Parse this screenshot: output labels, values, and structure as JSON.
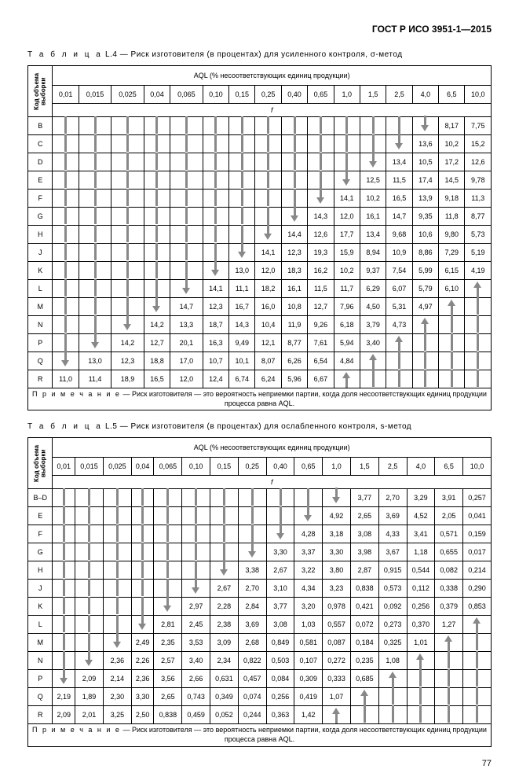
{
  "doc_header": "ГОСТ Р ИСО 3951-1—2015",
  "page_number": "77",
  "note_label": "П р и м е ч а н и е",
  "note_text": " — Риск изготовителя — это вероятность неприемки партии, когда доля несоответствующих единиц продукции процесса равна AQL.",
  "aql_header": "AQL (% несоответствующих единиц продукции)",
  "vheader": "Код объема выборки",
  "f_label": "f",
  "aql_cols": [
    "0,01",
    "0,015",
    "0,025",
    "0,04",
    "0,065",
    "0,10",
    "0,15",
    "0,25",
    "0,40",
    "0,65",
    "1,0",
    "1,5",
    "2,5",
    "4,0",
    "6,5",
    "10,0"
  ],
  "table_L4": {
    "caption_label": "Т а б л и ц а",
    "caption": " L.4 — Риск изготовителя (в процентах) для усиленного контроля, σ-метод",
    "rows": [
      {
        "code": "B",
        "cells": [
          "d",
          "d",
          "d",
          "d",
          "d",
          "d",
          "d",
          "d",
          "d",
          "d",
          "d",
          "d",
          "d",
          "d",
          "8,17",
          "7,75"
        ]
      },
      {
        "code": "C",
        "cells": [
          "d",
          "d",
          "d",
          "d",
          "d",
          "d",
          "d",
          "d",
          "d",
          "d",
          "d",
          "d",
          "d",
          "13,6",
          "10,2",
          "15,2"
        ]
      },
      {
        "code": "D",
        "cells": [
          "d",
          "d",
          "d",
          "d",
          "d",
          "d",
          "d",
          "d",
          "d",
          "d",
          "d",
          "d",
          "13,4",
          "10,5",
          "17,2",
          "12,6"
        ]
      },
      {
        "code": "E",
        "cells": [
          "d",
          "d",
          "d",
          "d",
          "d",
          "d",
          "d",
          "d",
          "d",
          "d",
          "d",
          "12,5",
          "11,5",
          "17,4",
          "14,5",
          "9,78"
        ]
      },
      {
        "code": "F",
        "cells": [
          "d",
          "d",
          "d",
          "d",
          "d",
          "d",
          "d",
          "d",
          "d",
          "d",
          "14,1",
          "10,2",
          "16,5",
          "13,9",
          "9,18",
          "11,3"
        ]
      },
      {
        "code": "G",
        "cells": [
          "d",
          "d",
          "d",
          "d",
          "d",
          "d",
          "d",
          "d",
          "d",
          "14,3",
          "12,0",
          "16,1",
          "14,7",
          "9,35",
          "11,8",
          "8,77"
        ]
      },
      {
        "code": "H",
        "cells": [
          "d",
          "d",
          "d",
          "d",
          "d",
          "d",
          "d",
          "d",
          "14,4",
          "12,6",
          "17,7",
          "13,4",
          "9,68",
          "10,6",
          "9,80",
          "5,73"
        ]
      },
      {
        "code": "J",
        "cells": [
          "d",
          "d",
          "d",
          "d",
          "d",
          "d",
          "d",
          "14,1",
          "12,3",
          "19,3",
          "15,9",
          "8,94",
          "10,9",
          "8,86",
          "7,29",
          "5,19"
        ]
      },
      {
        "code": "K",
        "cells": [
          "d",
          "d",
          "d",
          "d",
          "d",
          "d",
          "13,0",
          "12,0",
          "18,3",
          "16,2",
          "10,2",
          "9,37",
          "7,54",
          "5,99",
          "6,15",
          "4,19"
        ]
      },
      {
        "code": "L",
        "cells": [
          "d",
          "d",
          "d",
          "d",
          "d",
          "14,1",
          "11,1",
          "18,2",
          "16,1",
          "11,5",
          "11,7",
          "6,29",
          "6,07",
          "5,79",
          "6,10",
          "u"
        ]
      },
      {
        "code": "M",
        "cells": [
          "d",
          "d",
          "d",
          "d",
          "14,7",
          "12,3",
          "16,7",
          "16,0",
          "10,8",
          "12,7",
          "7,96",
          "4,50",
          "5,31",
          "4,97",
          "u",
          "u"
        ]
      },
      {
        "code": "N",
        "cells": [
          "d",
          "d",
          "d",
          "14,2",
          "13,3",
          "18,7",
          "14,3",
          "10,4",
          "11,9",
          "9,26",
          "6,18",
          "3,79",
          "4,73",
          "u",
          "u",
          "u"
        ]
      },
      {
        "code": "P",
        "cells": [
          "d",
          "d",
          "14,2",
          "12,7",
          "20,1",
          "16,3",
          "9,49",
          "12,1",
          "8,77",
          "7,61",
          "5,94",
          "3,40",
          "u",
          "u",
          "u",
          "u"
        ]
      },
      {
        "code": "Q",
        "cells": [
          "d",
          "13,0",
          "12,3",
          "18,8",
          "17,0",
          "10,7",
          "10,1",
          "8,07",
          "6,26",
          "6,54",
          "4,84",
          "u",
          "u",
          "u",
          "u",
          "u"
        ]
      },
      {
        "code": "R",
        "cells": [
          "11,0",
          "11,4",
          "18,9",
          "16,5",
          "12,0",
          "12,4",
          "6,74",
          "6,24",
          "5,96",
          "6,67",
          "u",
          "u",
          "u",
          "u",
          "u",
          "u"
        ]
      }
    ]
  },
  "table_L5": {
    "caption_label": "Т а б л и ц а",
    "caption": " L.5 — Риск изготовителя (в процентах) для ослабленного контроля, s-метод",
    "rows": [
      {
        "code": "B–D",
        "cells": [
          "d",
          "d",
          "d",
          "d",
          "d",
          "d",
          "d",
          "d",
          "d",
          "d",
          "d",
          "3,77",
          "2,70",
          "3,29",
          "3,91",
          "0,257"
        ]
      },
      {
        "code": "E",
        "cells": [
          "d",
          "d",
          "d",
          "d",
          "d",
          "d",
          "d",
          "d",
          "d",
          "d",
          "4,92",
          "2,65",
          "3,69",
          "4,52",
          "2,05",
          "0,041"
        ]
      },
      {
        "code": "F",
        "cells": [
          "d",
          "d",
          "d",
          "d",
          "d",
          "d",
          "d",
          "d",
          "d",
          "4,28",
          "3,18",
          "3,08",
          "4,33",
          "3,41",
          "0,571",
          "0,159"
        ]
      },
      {
        "code": "G",
        "cells": [
          "d",
          "d",
          "d",
          "d",
          "d",
          "d",
          "d",
          "d",
          "3,30",
          "3,37",
          "3,30",
          "3,98",
          "3,67",
          "1,18",
          "0,655",
          "0,017"
        ]
      },
      {
        "code": "H",
        "cells": [
          "d",
          "d",
          "d",
          "d",
          "d",
          "d",
          "d",
          "3,38",
          "2,67",
          "3,22",
          "3,80",
          "2,87",
          "0,915",
          "0,544",
          "0,082",
          "0,214"
        ]
      },
      {
        "code": "J",
        "cells": [
          "d",
          "d",
          "d",
          "d",
          "d",
          "d",
          "2,67",
          "2,70",
          "3,10",
          "4,34",
          "3,23",
          "0,838",
          "0,573",
          "0,112",
          "0,338",
          "0,290"
        ]
      },
      {
        "code": "K",
        "cells": [
          "d",
          "d",
          "d",
          "d",
          "d",
          "2,97",
          "2,28",
          "2,84",
          "3,77",
          "3,20",
          "0,978",
          "0,421",
          "0,092",
          "0,256",
          "0,379",
          "0,853"
        ]
      },
      {
        "code": "L",
        "cells": [
          "d",
          "d",
          "d",
          "d",
          "2,81",
          "2,45",
          "2,38",
          "3,69",
          "3,08",
          "1,03",
          "0,557",
          "0,072",
          "0,273",
          "0,370",
          "1,27",
          "u"
        ]
      },
      {
        "code": "M",
        "cells": [
          "d",
          "d",
          "d",
          "2,49",
          "2,35",
          "3,53",
          "3,09",
          "2,68",
          "0,849",
          "0,581",
          "0,087",
          "0,184",
          "0,325",
          "1,01",
          "u",
          "u"
        ]
      },
      {
        "code": "N",
        "cells": [
          "d",
          "d",
          "2,36",
          "2,26",
          "2,57",
          "3,40",
          "2,34",
          "0,822",
          "0,503",
          "0,107",
          "0,272",
          "0,235",
          "1,08",
          "u",
          "u",
          "u"
        ]
      },
      {
        "code": "P",
        "cells": [
          "d",
          "2,09",
          "2,14",
          "2,36",
          "3,56",
          "2,66",
          "0,631",
          "0,457",
          "0,084",
          "0,309",
          "0,333",
          "0,685",
          "u",
          "u",
          "u",
          "u"
        ]
      },
      {
        "code": "Q",
        "cells": [
          "2,19",
          "1,89",
          "2,30",
          "3,30",
          "2,65",
          "0,743",
          "0,349",
          "0,074",
          "0,256",
          "0,419",
          "1,07",
          "u",
          "u",
          "u",
          "u",
          "u"
        ]
      },
      {
        "code": "R",
        "cells": [
          "2,09",
          "2,01",
          "3,25",
          "2,50",
          "0,838",
          "0,459",
          "0,052",
          "0,244",
          "0,363",
          "1,42",
          "u",
          "u",
          "u",
          "u",
          "u",
          "u"
        ]
      }
    ]
  }
}
